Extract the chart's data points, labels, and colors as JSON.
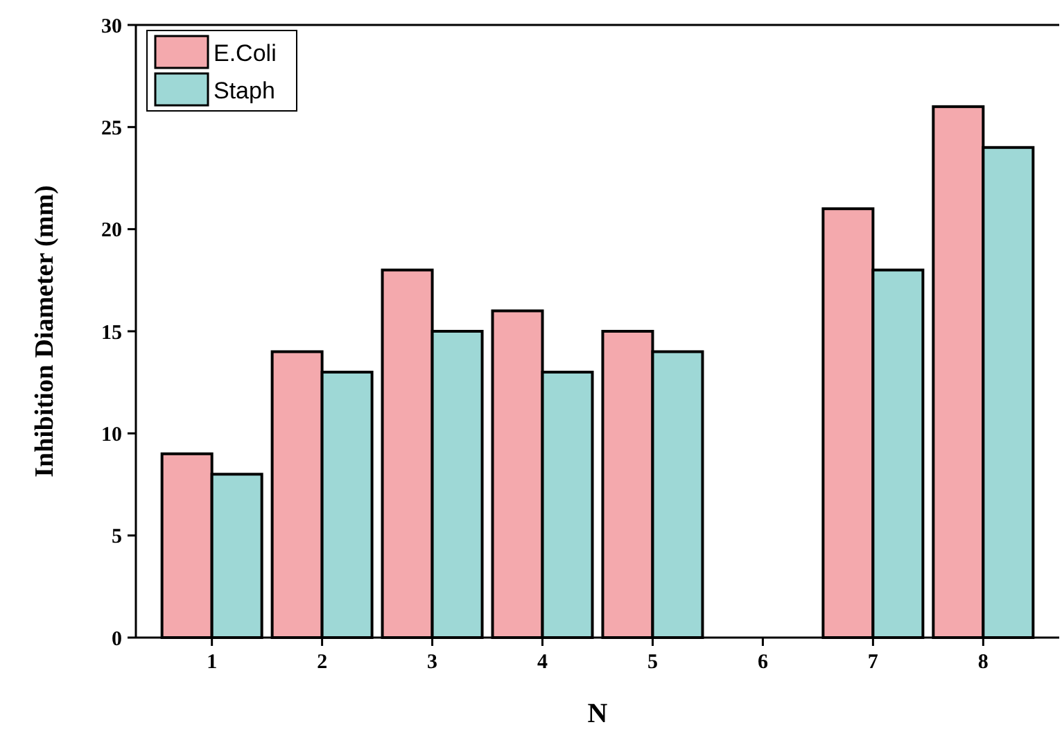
{
  "chart_data": {
    "type": "bar",
    "xlabel": "N",
    "ylabel": "Inhibition Diameter (mm)",
    "categories": [
      "1",
      "2",
      "3",
      "4",
      "5",
      "6",
      "7",
      "8"
    ],
    "series": [
      {
        "name": "E.Coli",
        "color": "#f4a9ad",
        "values": [
          9,
          14,
          18,
          16,
          15,
          0,
          21,
          26
        ]
      },
      {
        "name": "Staph",
        "color": "#9ed8d6",
        "values": [
          8,
          13,
          15,
          13,
          14,
          0,
          18,
          24
        ]
      }
    ],
    "ylim": [
      0,
      30
    ],
    "yticks": [
      0,
      5,
      10,
      15,
      20,
      25,
      30
    ],
    "legend": "top left",
    "grid": false
  }
}
